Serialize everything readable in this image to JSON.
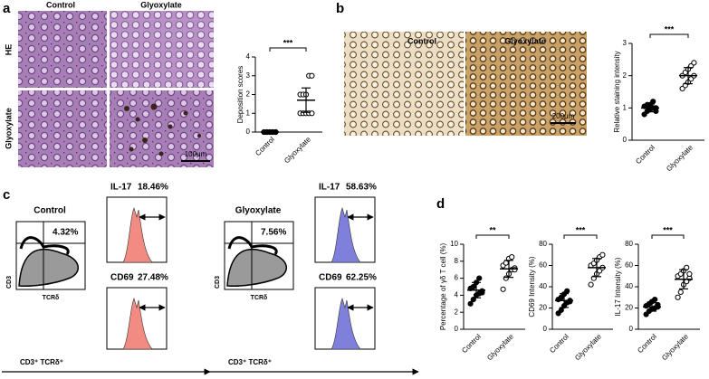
{
  "panel_labels": [
    "a",
    "b",
    "c",
    "d"
  ],
  "panel_a": {
    "columns": [
      "Control",
      "Glyoxylate"
    ],
    "rows": [
      "HE",
      "Glyoxylate"
    ],
    "scale_bar": "100μm"
  },
  "panel_b": {
    "columns": [
      "Control",
      "Glyoxylate"
    ],
    "scale_bar": "200μm"
  },
  "panel_c": {
    "groups": [
      {
        "title": "Control",
        "gate": "4.32%",
        "y_axis": "CD3",
        "x_axis": "TCRδ",
        "population": "CD3⁺  TCRδ⁺",
        "color": "#f28b82",
        "histograms": [
          {
            "marker": "IL-17",
            "percent": "18.46%"
          },
          {
            "marker": "CD69",
            "percent": "27.48%"
          }
        ]
      },
      {
        "title": "Glyoxylate",
        "gate": "7.56%",
        "y_axis": "CD3",
        "x_axis": "TCRδ",
        "population": "CD3⁺  TCRδ⁺",
        "color": "#7f7fdc",
        "histograms": [
          {
            "marker": "IL-17",
            "percent": "58.63%"
          },
          {
            "marker": "CD69",
            "percent": "62.25%"
          }
        ]
      }
    ]
  },
  "chart_data": [
    {
      "type": "dot",
      "ylabel": "Deposition scores",
      "categories": [
        "Control",
        "Glyoxylate"
      ],
      "ylim": [
        0,
        4
      ],
      "yticks": [
        0,
        1,
        2,
        3,
        4
      ],
      "significance": "***",
      "groups": [
        {
          "values": [
            0,
            0,
            0,
            0,
            0,
            0,
            0,
            0,
            0,
            0
          ],
          "mean": 0,
          "sd": 0,
          "marker": "filled"
        },
        {
          "values": [
            1,
            1,
            1,
            1,
            1,
            2,
            2,
            2,
            3,
            3
          ],
          "mean": 1.7,
          "sd": 0.65,
          "marker": "open"
        }
      ]
    },
    {
      "type": "dot",
      "ylabel": "Relative staining intensity",
      "categories": [
        "Control",
        "Glyoxylate"
      ],
      "ylim": [
        0,
        3
      ],
      "yticks": [
        0,
        1,
        2,
        3
      ],
      "significance": "***",
      "groups": [
        {
          "values": [
            0.8,
            0.9,
            0.95,
            1.0,
            1.0,
            1.05,
            1.1,
            1.1,
            1.2,
            0.9
          ],
          "mean": 1.0,
          "sd": 0.12,
          "marker": "filled"
        },
        {
          "values": [
            1.6,
            1.7,
            1.8,
            1.9,
            2.0,
            2.0,
            2.1,
            2.2,
            2.3,
            2.4
          ],
          "mean": 2.0,
          "sd": 0.25,
          "marker": "open"
        }
      ]
    },
    {
      "type": "dot",
      "ylabel": "Percentage of γδ T cell (%)",
      "categories": [
        "Control",
        "Glyoxylate"
      ],
      "ylim": [
        0,
        10
      ],
      "yticks": [
        0,
        2,
        4,
        6,
        8,
        10
      ],
      "significance": "**",
      "groups": [
        {
          "values": [
            3.0,
            3.5,
            4.0,
            4.2,
            4.5,
            4.8,
            5.0,
            5.5,
            6.0,
            4.3
          ],
          "mean": 4.6,
          "sd": 0.9,
          "marker": "filled"
        },
        {
          "values": [
            4.7,
            6.0,
            6.5,
            7.0,
            7.2,
            7.5,
            7.8,
            8.3,
            8.5,
            7.0
          ],
          "mean": 7.1,
          "sd": 1.0,
          "marker": "open"
        }
      ]
    },
    {
      "type": "dot",
      "ylabel": "CD69 Intensity (%)",
      "categories": [
        "Control",
        "Glyoxylate"
      ],
      "ylim": [
        0,
        80
      ],
      "yticks": [
        0,
        20,
        40,
        60,
        80
      ],
      "significance": "***",
      "groups": [
        {
          "values": [
            15,
            18,
            22,
            25,
            27,
            28,
            30,
            33,
            36,
            26
          ],
          "mean": 27,
          "sd": 6.5,
          "marker": "filled"
        },
        {
          "values": [
            42,
            48,
            52,
            55,
            58,
            60,
            62,
            65,
            68,
            70
          ],
          "mean": 58,
          "sd": 8.5,
          "marker": "open"
        }
      ]
    },
    {
      "type": "dot",
      "ylabel": "IL-17 Intensity (%)",
      "categories": [
        "Control",
        "Glyoxylate"
      ],
      "ylim": [
        0,
        80
      ],
      "yticks": [
        0,
        20,
        40,
        60,
        80
      ],
      "significance": "***",
      "groups": [
        {
          "values": [
            14,
            17,
            19,
            20,
            21,
            22,
            24,
            26,
            28,
            23
          ],
          "mean": 21,
          "sd": 4,
          "marker": "filled"
        },
        {
          "values": [
            30,
            35,
            42,
            45,
            48,
            50,
            52,
            55,
            58,
            52
          ],
          "mean": 47,
          "sd": 9,
          "marker": "open"
        }
      ]
    }
  ]
}
